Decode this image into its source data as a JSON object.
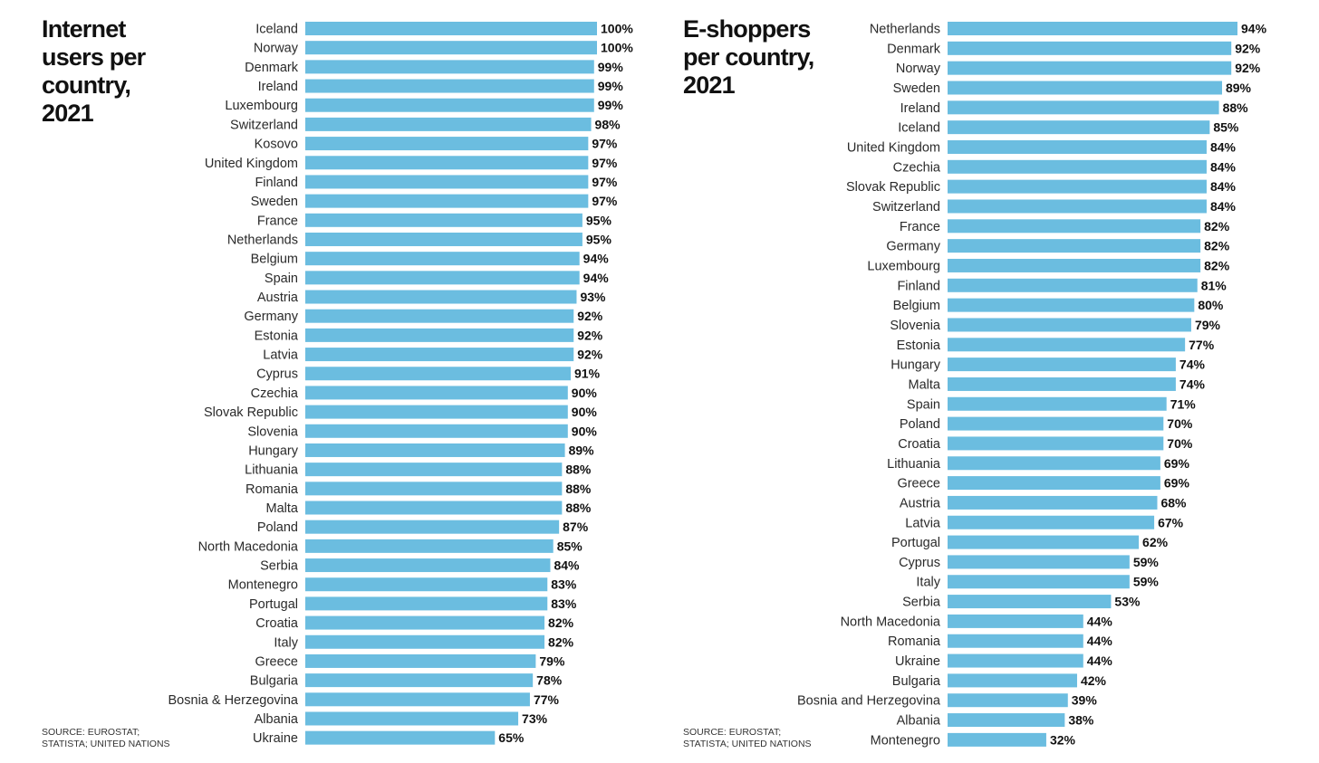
{
  "chart_data": [
    {
      "type": "bar",
      "orientation": "horizontal",
      "title": "Internet users per country, 2021",
      "source": "SOURCE: EUROSTAT; STATISTA; UNITED NATIONS",
      "unit": "%",
      "bar_color": "#6bbde0",
      "xlim": [
        0,
        100
      ],
      "categories": [
        "Iceland",
        "Norway",
        "Denmark",
        "Ireland",
        "Luxembourg",
        "Switzerland",
        "Kosovo",
        "United Kingdom",
        "Finland",
        "Sweden",
        "France",
        "Netherlands",
        "Belgium",
        "Spain",
        "Austria",
        "Germany",
        "Estonia",
        "Latvia",
        "Cyprus",
        "Czechia",
        "Slovak Republic",
        "Slovenia",
        "Hungary",
        "Lithuania",
        "Romania",
        "Malta",
        "Poland",
        "North Macedonia",
        "Serbia",
        "Montenegro",
        "Portugal",
        "Croatia",
        "Italy",
        "Greece",
        "Bulgaria",
        "Bosnia & Herzegovina",
        "Albania",
        "Ukraine"
      ],
      "values": [
        100,
        100,
        99,
        99,
        99,
        98,
        97,
        97,
        97,
        97,
        95,
        95,
        94,
        94,
        93,
        92,
        92,
        92,
        91,
        90,
        90,
        90,
        89,
        88,
        88,
        88,
        87,
        85,
        84,
        83,
        83,
        82,
        82,
        79,
        78,
        77,
        73,
        65
      ],
      "value_labels": [
        "100%",
        "100%",
        "99%",
        "99%",
        "99%",
        "98%",
        "97%",
        "97%",
        "97%",
        "97%",
        "95%",
        "95%",
        "94%",
        "94%",
        "93%",
        "92%",
        "92%",
        "92%",
        "91%",
        "90%",
        "90%",
        "90%",
        "89%",
        "88%",
        "88%",
        "88%",
        "87%",
        "85%",
        "84%",
        "83%",
        "83%",
        "82%",
        "82%",
        "79%",
        "78%",
        "77%",
        "73%",
        "65%"
      ]
    },
    {
      "type": "bar",
      "orientation": "horizontal",
      "title": "E-shoppers per country, 2021",
      "source": "SOURCE: EUROSTAT; STATISTA; UNITED NATIONS",
      "unit": "%",
      "bar_color": "#6bbde0",
      "xlim": [
        0,
        94
      ],
      "categories": [
        "Netherlands",
        "Denmark",
        "Norway",
        "Sweden",
        "Ireland",
        "Iceland",
        "United Kingdom",
        "Czechia",
        "Slovak Republic",
        "Switzerland",
        "France",
        "Germany",
        "Luxembourg",
        "Finland",
        "Belgium",
        "Slovenia",
        "Estonia",
        "Hungary",
        "Malta",
        "Spain",
        "Poland",
        "Croatia",
        "Lithuania",
        "Greece",
        "Austria",
        "Latvia",
        "Portugal",
        "Cyprus",
        "Italy",
        "Serbia",
        "North Macedonia",
        "Romania",
        "Ukraine",
        "Bulgaria",
        "Bosnia and Herzegovina",
        "Albania",
        "Montenegro"
      ],
      "values": [
        94,
        92,
        92,
        89,
        88,
        85,
        84,
        84,
        84,
        84,
        82,
        82,
        82,
        81,
        80,
        79,
        77,
        74,
        74,
        71,
        70,
        70,
        69,
        69,
        68,
        67,
        62,
        59,
        59,
        53,
        44,
        44,
        44,
        42,
        39,
        38,
        32
      ],
      "value_labels": [
        "94%",
        "92%",
        "92%",
        "89%",
        "88%",
        "85%",
        "84%",
        "84%",
        "84%",
        "84%",
        "82%",
        "82%",
        "82%",
        "81%",
        "80%",
        "79%",
        "77%",
        "74%",
        "74%",
        "71%",
        "70%",
        "70%",
        "69%",
        "69%",
        "68%",
        "67%",
        "62%",
        "59%",
        "59%",
        "53%",
        "44%",
        "44%",
        "44%",
        "42%",
        "39%",
        "38%",
        "32%"
      ]
    }
  ],
  "panels": {
    "left": {
      "title_lines": [
        "Internet",
        "users per",
        "country,",
        "2021"
      ],
      "source_lines": [
        "SOURCE: EUROSTAT;",
        "STATISTA; UNITED NATIONS"
      ]
    },
    "right": {
      "title_lines": [
        "E-shoppers",
        "per country,",
        "2021"
      ],
      "source_lines": [
        "SOURCE: EUROSTAT;",
        "STATISTA; UNITED NATIONS"
      ]
    }
  }
}
